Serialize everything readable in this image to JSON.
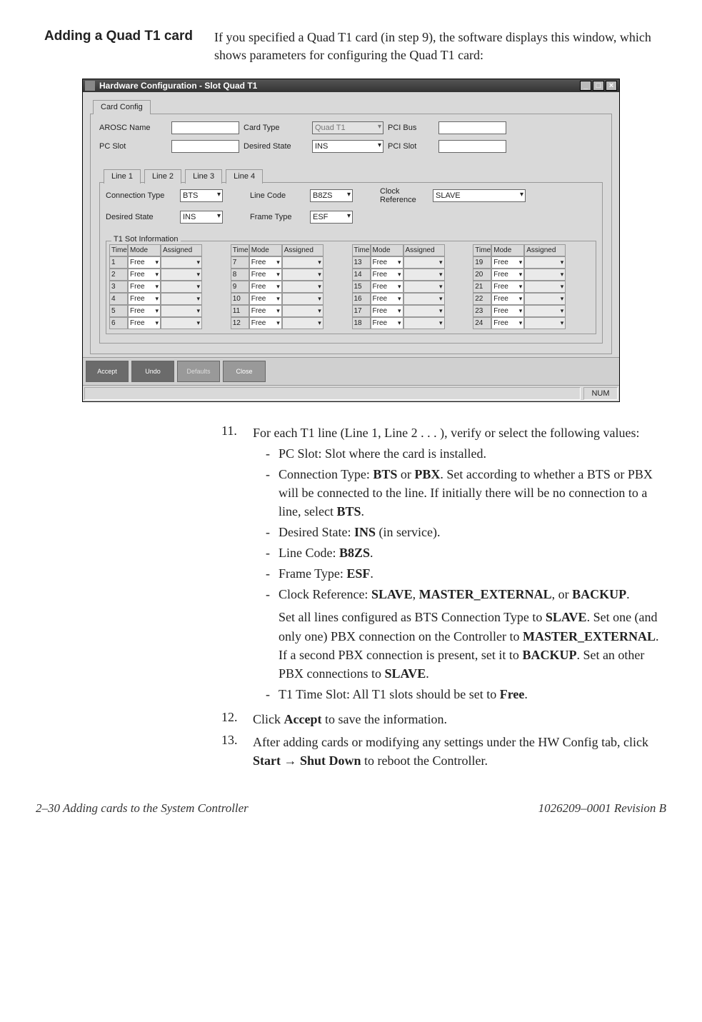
{
  "heading": "Adding a Quad T1 card",
  "intro": "If you specified a Quad T1 card (in step 9), the software displays this window, which shows parameters for configuring the Quad T1 card:",
  "window": {
    "title": "Hardware Configuration - Slot   Quad T1",
    "main_tab": "Card Config",
    "top_fields": {
      "arosc_name_label": "AROSC Name",
      "pc_slot_label": "PC Slot",
      "card_type_label": "Card Type",
      "card_type_value": "Quad T1",
      "desired_state_label": "Desired State",
      "desired_state_value": "INS",
      "pci_bus_label": "PCI Bus",
      "pci_slot_label": "PCI Slot"
    },
    "line_tabs": [
      "Line 1",
      "Line 2",
      "Line 3",
      "Line 4"
    ],
    "line_fields": {
      "conn_type_label": "Connection Type",
      "conn_type_value": "BTS",
      "desired_state_label": "Desired State",
      "desired_state_value": "INS",
      "line_code_label": "Line Code",
      "line_code_value": "B8ZS",
      "frame_type_label": "Frame Type",
      "frame_type_value": "ESF",
      "clock_ref_label": "Clock Reference",
      "clock_ref_value": "SLAVE"
    },
    "slot_section_title": "T1 Sot Information",
    "slot_headers": {
      "time_slot": "Time Slot",
      "mode": "Mode",
      "assigned_to": "Assigned To"
    },
    "slot_columns": [
      {
        "rows": [
          {
            "n": "1",
            "m": "Free"
          },
          {
            "n": "2",
            "m": "Free"
          },
          {
            "n": "3",
            "m": "Free"
          },
          {
            "n": "4",
            "m": "Free"
          },
          {
            "n": "5",
            "m": "Free"
          },
          {
            "n": "6",
            "m": "Free"
          }
        ]
      },
      {
        "rows": [
          {
            "n": "7",
            "m": "Free"
          },
          {
            "n": "8",
            "m": "Free"
          },
          {
            "n": "9",
            "m": "Free"
          },
          {
            "n": "10",
            "m": "Free"
          },
          {
            "n": "11",
            "m": "Free"
          },
          {
            "n": "12",
            "m": "Free"
          }
        ]
      },
      {
        "rows": [
          {
            "n": "13",
            "m": "Free"
          },
          {
            "n": "14",
            "m": "Free"
          },
          {
            "n": "15",
            "m": "Free"
          },
          {
            "n": "16",
            "m": "Free"
          },
          {
            "n": "17",
            "m": "Free"
          },
          {
            "n": "18",
            "m": "Free"
          }
        ]
      },
      {
        "rows": [
          {
            "n": "19",
            "m": "Free"
          },
          {
            "n": "20",
            "m": "Free"
          },
          {
            "n": "21",
            "m": "Free"
          },
          {
            "n": "22",
            "m": "Free"
          },
          {
            "n": "23",
            "m": "Free"
          },
          {
            "n": "24",
            "m": "Free"
          }
        ]
      }
    ],
    "toolbar": {
      "accept": "Accept",
      "undo": "Undo",
      "defaults": "Defaults",
      "close": "Close"
    },
    "status_num": "NUM"
  },
  "steps": {
    "s11_num": "11.",
    "s11_text": "For each T1 line (Line 1, Line 2 . . . ), verify or select the following values:",
    "s11_a": "PC Slot: Slot where the card is installed.",
    "s11_b_pre": "Connection Type: ",
    "s11_b_b1": "BTS",
    "s11_b_mid1": " or ",
    "s11_b_b2": "PBX",
    "s11_b_post": ". Set according to whether a BTS or PBX will be connected to the line. If initially there will be no connection to a line, select ",
    "s11_b_b3": "BTS",
    "s11_b_end": ".",
    "s11_c_pre": "Desired State: ",
    "s11_c_b": "INS",
    "s11_c_post": " (in service).",
    "s11_d_pre": "Line Code: ",
    "s11_d_b": "B8ZS",
    "s11_d_post": ".",
    "s11_e_pre": "Frame Type: ",
    "s11_e_b": "ESF",
    "s11_e_post": ".",
    "s11_f_pre": "Clock Reference: ",
    "s11_f_b1": "SLAVE",
    "s11_f_mid1": ", ",
    "s11_f_b2": "MASTER_EXTERNAL",
    "s11_f_mid2": ", or ",
    "s11_f_b3": "BACKUP",
    "s11_f_post": ".",
    "s11_f2_1": "Set all lines configured as BTS Connection Type to ",
    "s11_f2_b1": "SLAVE",
    "s11_f2_2": ". Set one (and only one) PBX connection on the Controller to ",
    "s11_f2_b2": "MASTER_EXTERNAL",
    "s11_f2_3": ". If a second PBX connection is present, set it to ",
    "s11_f2_b3": "BACKUP",
    "s11_f2_4": ". Set an other PBX connections to ",
    "s11_f2_b4": "SLAVE",
    "s11_f2_5": ".",
    "s11_g_pre": "T1 Time Slot: All T1 slots should be set to ",
    "s11_g_b": "Free",
    "s11_g_post": ".",
    "s12_num": "12.",
    "s12_pre": "Click ",
    "s12_b": "Accept",
    "s12_post": " to save the information.",
    "s13_num": "13.",
    "s13_pre": "After adding cards or modifying any settings under the HW Config tab, click ",
    "s13_b1": "Start",
    "s13_arrow": " → ",
    "s13_b2": "Shut Down",
    "s13_post": " to reboot the Controller."
  },
  "footer_left": "2–30  Adding cards to the System Controller",
  "footer_right": "1026209–0001  Revision B"
}
